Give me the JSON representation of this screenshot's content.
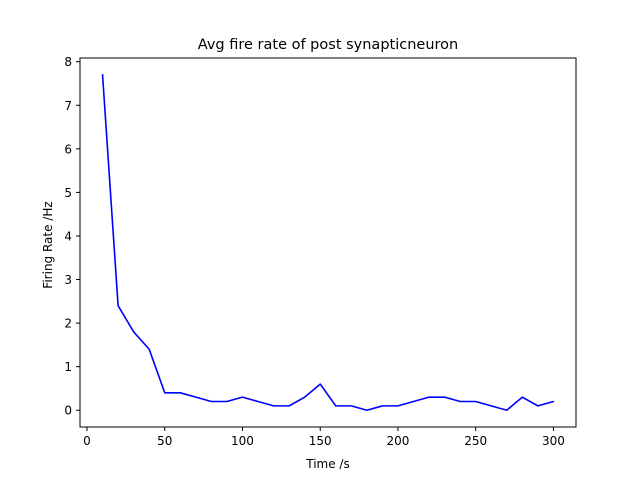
{
  "chart_data": {
    "type": "line",
    "title": "Avg fire rate of post synapticneuron",
    "xlabel": "Time /s",
    "ylabel": "Firing Rate /Hz",
    "xlim": [
      -4.5,
      314.5
    ],
    "ylim": [
      -0.385,
      8.085
    ],
    "xticks": [
      0,
      50,
      100,
      150,
      200,
      250,
      300
    ],
    "yticks": [
      0,
      1,
      2,
      3,
      4,
      5,
      6,
      7,
      8
    ],
    "grid": false,
    "legend": "none",
    "series": [
      {
        "color": "#0000ff",
        "x": [
          10,
          20,
          30,
          40,
          50,
          60,
          70,
          80,
          90,
          100,
          110,
          120,
          130,
          140,
          150,
          160,
          170,
          180,
          190,
          200,
          210,
          220,
          230,
          240,
          250,
          260,
          270,
          280,
          290,
          300
        ],
        "values": [
          7.7,
          2.4,
          1.8,
          1.4,
          0.4,
          0.4,
          0.3,
          0.2,
          0.2,
          0.3,
          0.2,
          0.1,
          0.1,
          0.3,
          0.6,
          0.1,
          0.1,
          0.0,
          0.1,
          0.1,
          0.2,
          0.3,
          0.3,
          0.2,
          0.2,
          0.1,
          0.0,
          0.3,
          0.1,
          0.2
        ]
      }
    ]
  }
}
